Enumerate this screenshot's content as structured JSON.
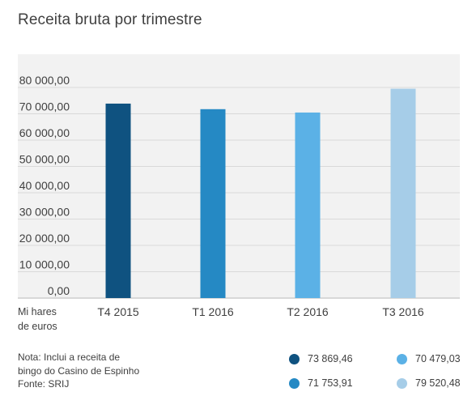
{
  "chart_data": {
    "type": "bar",
    "title": "Receita bruta por trimestre",
    "categories": [
      "T4 2015",
      "T1 2016",
      "T2 2016",
      "T3 2016"
    ],
    "values": [
      73869.46,
      71753.91,
      70479.03,
      79520.48
    ],
    "value_labels": [
      "73 869,46",
      "71 753,91",
      "70 479,03",
      "79 520,48"
    ],
    "colors": [
      "#0f5280",
      "#2589c4",
      "#5bb1e6",
      "#a6cde8"
    ],
    "ylim": [
      0,
      80000
    ],
    "yticks": [
      "0,00",
      "10 000,00",
      "20 000,00",
      "30 000,00",
      "40 000,00",
      "50 000,00",
      "60 000,00",
      "70 000,00",
      "80 000,00"
    ],
    "ylabel": "Mi hares de euros",
    "grid": true,
    "legend_position": "bottom-right"
  },
  "unit_lines": [
    "Mi hares",
    "de euros"
  ],
  "note_lines": [
    "Nota: Inclui a receita de",
    "bingo do Casino de Espinho",
    "Fonte: SRIJ"
  ]
}
